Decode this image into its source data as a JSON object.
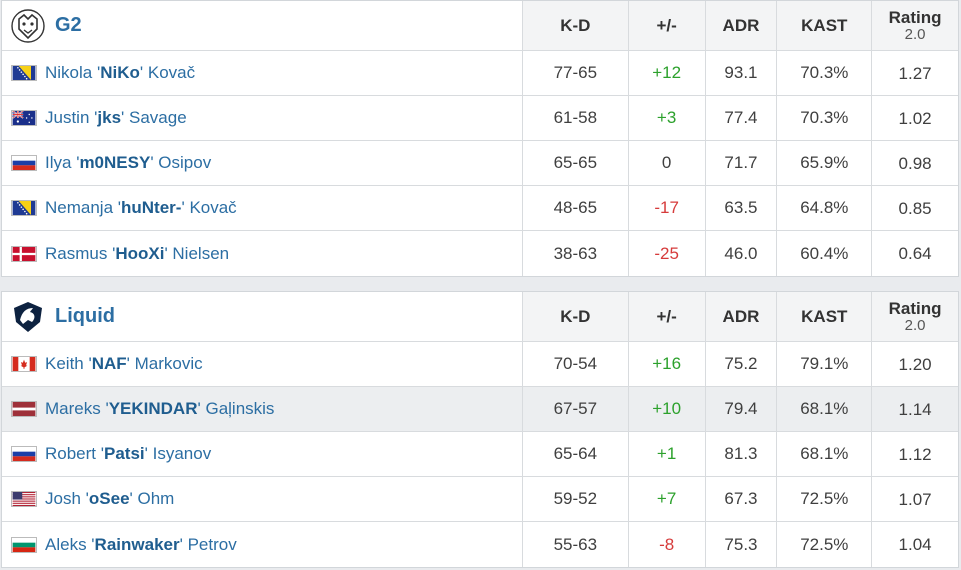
{
  "columns": {
    "kd": "K-D",
    "pm": "+/-",
    "adr": "ADR",
    "kast": "KAST",
    "rating": "Rating",
    "rating_sub": "2.0"
  },
  "teams": [
    {
      "name": "G2",
      "logo_icon": "g2-logo-icon",
      "players": [
        {
          "first": "Nikola",
          "nick": "NiKo",
          "last": "Kovač",
          "flag": "bosnia",
          "kd": "77-65",
          "pm": "+12",
          "pm_sign": "pos",
          "adr": "93.1",
          "kast": "70.3%",
          "rating": "1.27"
        },
        {
          "first": "Justin",
          "nick": "jks",
          "last": "Savage",
          "flag": "australia",
          "kd": "61-58",
          "pm": "+3",
          "pm_sign": "pos",
          "adr": "77.4",
          "kast": "70.3%",
          "rating": "1.02"
        },
        {
          "first": "Ilya",
          "nick": "m0NESY",
          "last": "Osipov",
          "flag": "russia",
          "kd": "65-65",
          "pm": "0",
          "pm_sign": "neu",
          "adr": "71.7",
          "kast": "65.9%",
          "rating": "0.98"
        },
        {
          "first": "Nemanja",
          "nick": "huNter-",
          "last": "Kovač",
          "flag": "bosnia",
          "kd": "48-65",
          "pm": "-17",
          "pm_sign": "neg",
          "adr": "63.5",
          "kast": "64.8%",
          "rating": "0.85"
        },
        {
          "first": "Rasmus",
          "nick": "HooXi",
          "last": "Nielsen",
          "flag": "denmark",
          "kd": "38-63",
          "pm": "-25",
          "pm_sign": "neg",
          "adr": "46.0",
          "kast": "60.4%",
          "rating": "0.64"
        }
      ]
    },
    {
      "name": "Liquid",
      "logo_icon": "liquid-horse-logo-icon",
      "players": [
        {
          "first": "Keith",
          "nick": "NAF",
          "last": "Markovic",
          "flag": "canada",
          "kd": "70-54",
          "pm": "+16",
          "pm_sign": "pos",
          "adr": "75.2",
          "kast": "79.1%",
          "rating": "1.20"
        },
        {
          "first": "Mareks",
          "nick": "YEKINDAR",
          "last": "Gaļinskis",
          "flag": "latvia",
          "kd": "67-57",
          "pm": "+10",
          "pm_sign": "pos",
          "adr": "79.4",
          "kast": "68.1%",
          "rating": "1.14",
          "highlight": true
        },
        {
          "first": "Robert",
          "nick": "Patsi",
          "last": "Isyanov",
          "flag": "russia",
          "kd": "65-64",
          "pm": "+1",
          "pm_sign": "pos",
          "adr": "81.3",
          "kast": "68.1%",
          "rating": "1.12"
        },
        {
          "first": "Josh",
          "nick": "oSee",
          "last": "Ohm",
          "flag": "usa",
          "kd": "59-52",
          "pm": "+7",
          "pm_sign": "pos",
          "adr": "67.3",
          "kast": "72.5%",
          "rating": "1.07"
        },
        {
          "first": "Aleks",
          "nick": "Rainwaker",
          "last": "Petrov",
          "flag": "bulgaria",
          "kd": "55-63",
          "pm": "-8",
          "pm_sign": "neg",
          "adr": "75.3",
          "kast": "72.5%",
          "rating": "1.04"
        }
      ]
    }
  ]
}
